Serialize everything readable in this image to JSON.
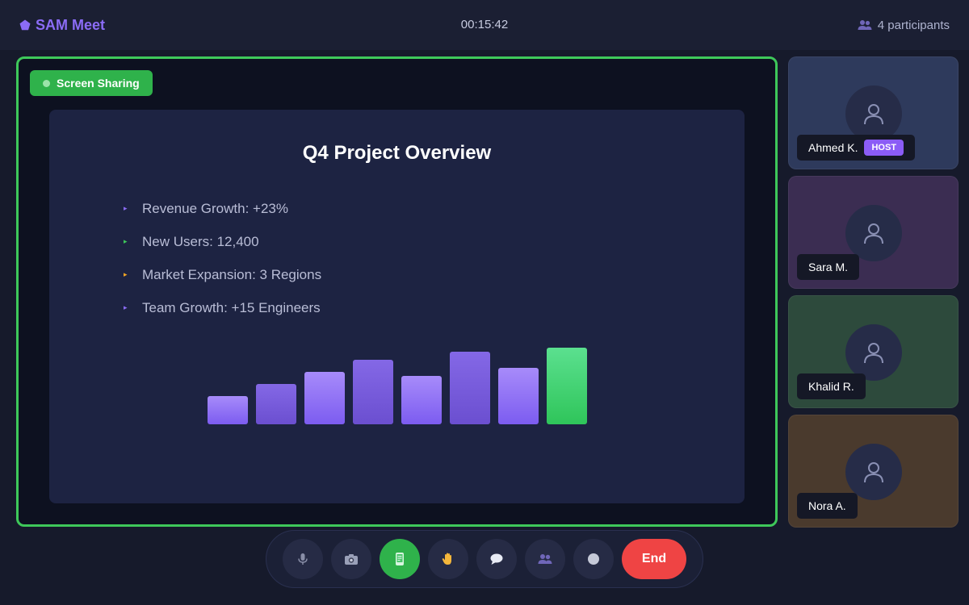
{
  "header": {
    "brand_name": "SAM Meet",
    "brand_icon": "pentagon-logo-icon",
    "timer": "00:15:42",
    "participants_label": "4 participants",
    "participants_icon": "people-icon"
  },
  "stage": {
    "badge_label": "Screen Sharing",
    "border_color": "#3ec85a"
  },
  "slide": {
    "title": "Q4 Project Overview",
    "bullets": [
      {
        "text": "Revenue Growth: +23%",
        "color": "#8b6cf6"
      },
      {
        "text": "New Users: 12,400",
        "color": "#3ec85a"
      },
      {
        "text": "Market Expansion: 3 Regions",
        "color": "#f5a623"
      },
      {
        "text": "Team Growth: +15 Engineers",
        "color": "#8b6cf6"
      }
    ],
    "chart_data": {
      "type": "bar",
      "values": [
        35,
        50,
        65,
        80,
        60,
        90,
        70,
        95
      ],
      "ylim": [
        0,
        100
      ],
      "colors": [
        "#8b6cf6",
        "#7a5ce0",
        "#8b6cf6",
        "#7a5ce0",
        "#8b6cf6",
        "#7a5ce0",
        "#8b6cf6",
        "#3ec85a"
      ],
      "grid": false
    }
  },
  "participants": [
    {
      "name": "Ahmed K.",
      "badge": "HOST",
      "bg": "#2e3a5c"
    },
    {
      "name": "Sara M.",
      "badge": "",
      "bg": "#3b2d52"
    },
    {
      "name": "Khalid R.",
      "badge": "",
      "bg": "#2d4a3c"
    },
    {
      "name": "Nora A.",
      "badge": "",
      "bg": "#4a3a2d"
    }
  ],
  "controls": {
    "buttons": [
      "microphone-icon",
      "camera-icon",
      "screen-share-icon",
      "raise-hand-icon",
      "chat-icon",
      "participants-icon",
      "record-icon"
    ],
    "active": "screen-share-icon",
    "end_label": "End",
    "end_color": "#ef4444"
  }
}
